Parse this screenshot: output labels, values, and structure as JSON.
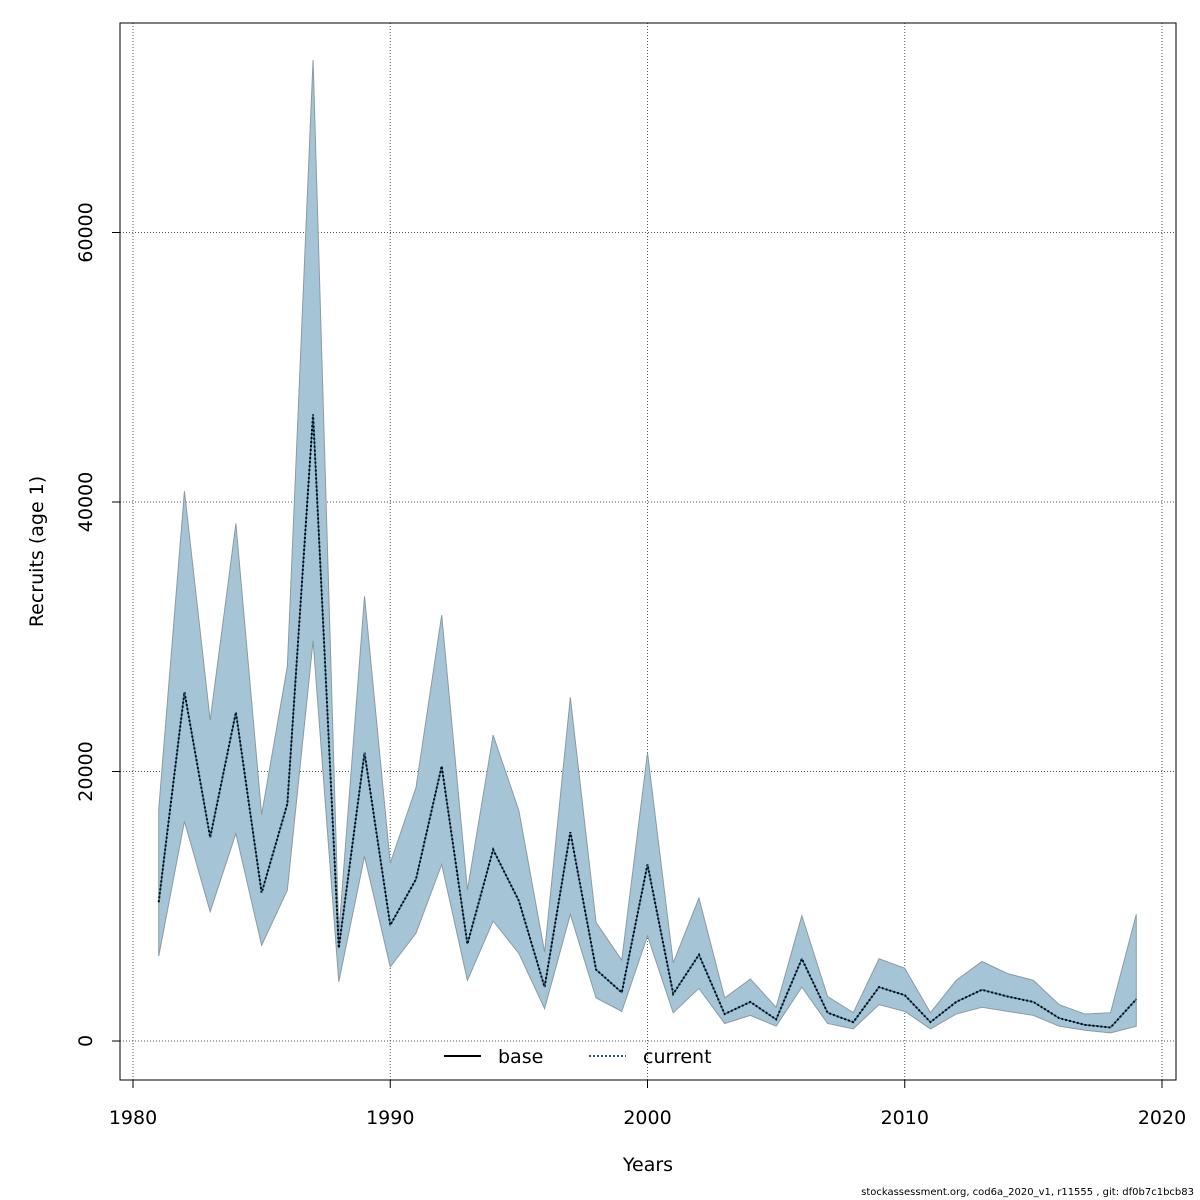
{
  "chart_data": {
    "type": "line",
    "title": "",
    "xlabel": "Years",
    "ylabel": "Recruits (age 1)",
    "xlim": [
      1980,
      2020
    ],
    "ylim": [
      0,
      70000
    ],
    "grid": true,
    "legend_position": "bottom-center",
    "x_ticks": [
      1980,
      1990,
      2000,
      2010,
      2020
    ],
    "y_ticks": [
      0,
      20000,
      40000,
      60000
    ],
    "x_tick_labels": [
      "1980",
      "1990",
      "2000",
      "2010",
      "2020"
    ],
    "y_tick_labels": [
      "0",
      "20000",
      "40000",
      "60000"
    ],
    "x": [
      1981,
      1982,
      1983,
      1984,
      1985,
      1986,
      1987,
      1988,
      1989,
      1990,
      1991,
      1992,
      1993,
      1994,
      1995,
      1996,
      1997,
      1998,
      1999,
      2000,
      2001,
      2002,
      2003,
      2004,
      2005,
      2006,
      2007,
      2008,
      2009,
      2010,
      2011,
      2012,
      2013,
      2014,
      2015,
      2016,
      2017,
      2018,
      2019
    ],
    "band": {
      "color": "#a5c5d6",
      "edge_color": "#8a9aa3",
      "upper": [
        17200,
        40800,
        23800,
        38400,
        16800,
        27800,
        72800,
        8000,
        33000,
        13200,
        18800,
        31600,
        11200,
        22700,
        17100,
        6600,
        25500,
        8800,
        6000,
        21400,
        5800,
        10600,
        3200,
        4600,
        2500,
        9300,
        3300,
        2100,
        6100,
        5400,
        2100,
        4500,
        5900,
        5000,
        4500,
        2700,
        2000,
        2100,
        9400
      ],
      "lower": [
        6300,
        16300,
        9600,
        15400,
        7100,
        11200,
        29700,
        4400,
        13700,
        5500,
        8000,
        13100,
        4500,
        8900,
        6500,
        2400,
        9400,
        3200,
        2200,
        7800,
        2100,
        3900,
        1300,
        1900,
        1100,
        4000,
        1300,
        900,
        2700,
        2200,
        900,
        2000,
        2500,
        2200,
        1900,
        1100,
        800,
        600,
        1100
      ]
    },
    "series": [
      {
        "name": "base",
        "color": "#000000",
        "style": "solid",
        "values": [
          10300,
          25900,
          15100,
          24400,
          11000,
          17600,
          46500,
          6900,
          21400,
          8600,
          12000,
          20400,
          7200,
          14200,
          10400,
          4000,
          15500,
          5300,
          3600,
          13100,
          3500,
          6400,
          2000,
          2900,
          1600,
          6100,
          2100,
          1400,
          4000,
          3400,
          1400,
          2900,
          3800,
          3300,
          2900,
          1700,
          1200,
          1000,
          3100
        ]
      },
      {
        "name": "current",
        "color": "#1f5f8b",
        "style": "dotted",
        "values": [
          10300,
          25900,
          15100,
          24400,
          11000,
          17600,
          46500,
          6900,
          21400,
          8600,
          12000,
          20400,
          7200,
          14200,
          10400,
          4000,
          15500,
          5300,
          3600,
          13100,
          3500,
          6400,
          2000,
          2900,
          1600,
          6100,
          2100,
          1400,
          4000,
          3400,
          1400,
          2900,
          3800,
          3300,
          2900,
          1700,
          1200,
          1000,
          3100
        ]
      }
    ]
  },
  "footer": "stockassessment.org, cod6a_2020_v1, r11555 , git: df0b7c1bcb83"
}
